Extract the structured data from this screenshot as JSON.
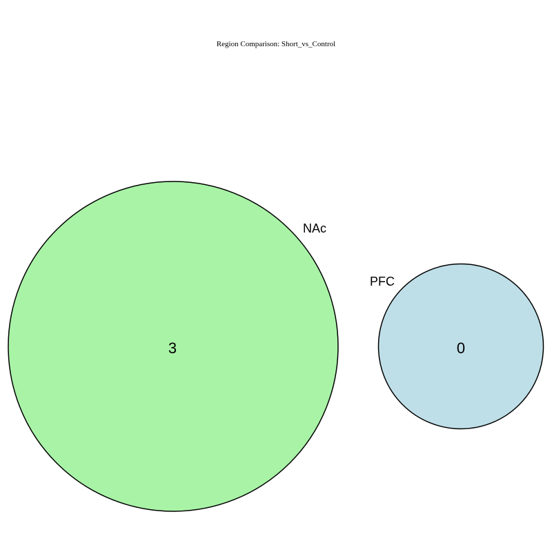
{
  "title": "Region Comparison: Short_vs_Control",
  "sets": [
    {
      "name": "NAc",
      "count": "3",
      "color": "#a9f3a7",
      "size": 3
    },
    {
      "name": "PFC",
      "count": "0",
      "color": "#bfdfe8",
      "size": 0
    }
  ],
  "outline_color": "#000000"
}
